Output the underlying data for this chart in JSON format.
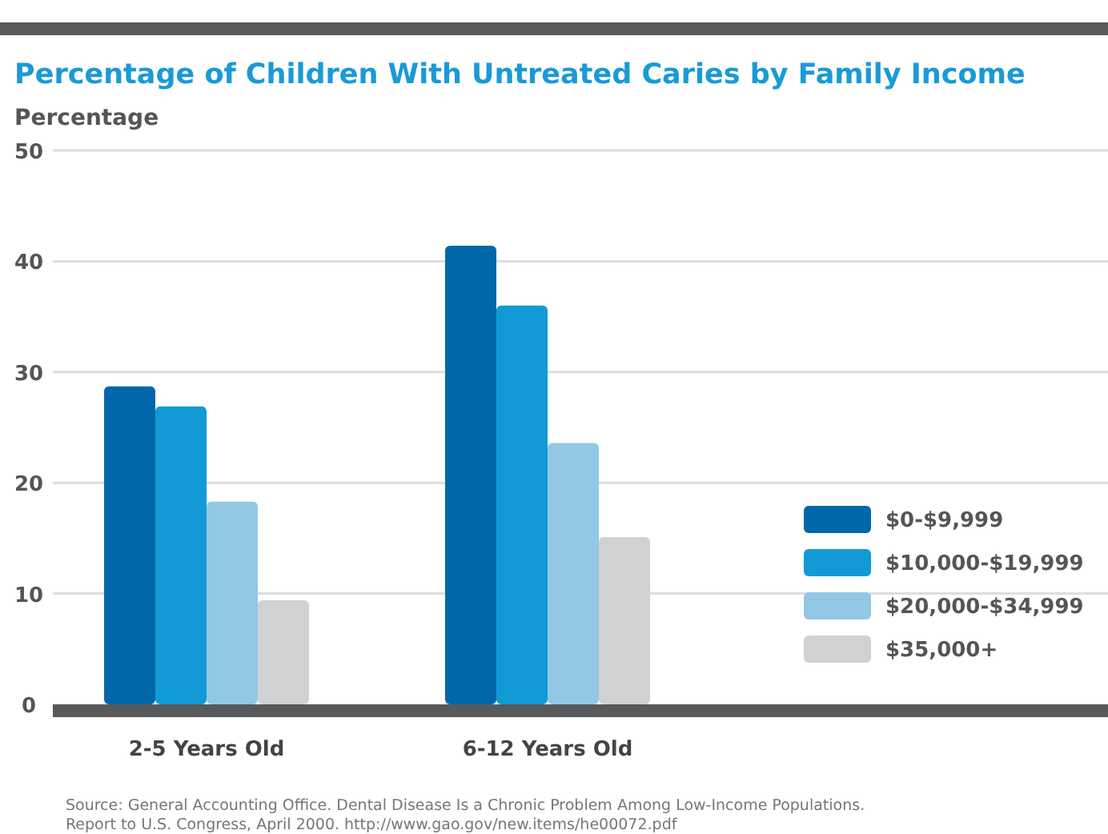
{
  "chart_data": {
    "type": "bar",
    "title": "Percentage of Children With Untreated Caries by Family Income",
    "ylabel": "Percentage",
    "categories": [
      "2-5 Years Old",
      "6-12 Years Old"
    ],
    "series": [
      {
        "name": "$0-$9,999",
        "color": "#0068aa",
        "values": [
          28.7,
          41.4
        ]
      },
      {
        "name": "$10,000-$19,999",
        "color": "#129ad6",
        "values": [
          26.9,
          36.0
        ]
      },
      {
        "name": "$20,000-$34,999",
        "color": "#92c7e6",
        "values": [
          18.3,
          23.6
        ]
      },
      {
        "name": "$35,000+",
        "color": "#d0d1d3",
        "values": [
          9.4,
          15.1
        ]
      }
    ],
    "ylim": [
      0,
      50
    ],
    "yticks": [
      0,
      10,
      20,
      30,
      40,
      50
    ],
    "grid": "y",
    "legend": "right",
    "annotations": [
      "Source: General Accounting Office. Dental Disease Is a Chronic Problem Among Low-Income Populations. Report to U.S. Congress, April 2000. http://www.gao.gov/new.items/he00072.pdf"
    ]
  }
}
